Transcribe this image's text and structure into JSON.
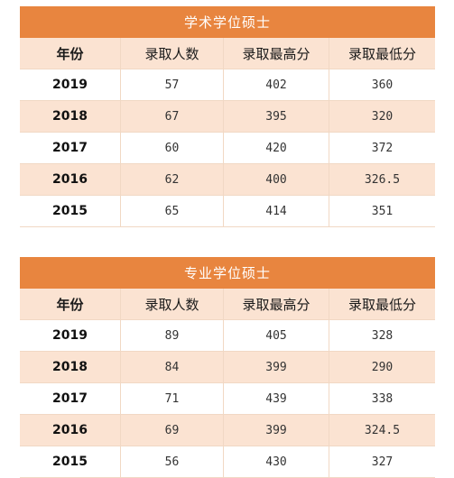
{
  "tables": [
    {
      "title": "学术学位硕士",
      "headers": [
        "年份",
        "录取人数",
        "录取最高分",
        "录取最低分"
      ],
      "rows": [
        [
          "2019",
          "57",
          "402",
          "360"
        ],
        [
          "2018",
          "67",
          "395",
          "320"
        ],
        [
          "2017",
          "60",
          "420",
          "372"
        ],
        [
          "2016",
          "62",
          "400",
          "326.5"
        ],
        [
          "2015",
          "65",
          "414",
          "351"
        ]
      ]
    },
    {
      "title": "专业学位硕士",
      "headers": [
        "年份",
        "录取人数",
        "录取最高分",
        "录取最低分"
      ],
      "rows": [
        [
          "2019",
          "89",
          "405",
          "328"
        ],
        [
          "2018",
          "84",
          "399",
          "290"
        ],
        [
          "2017",
          "71",
          "439",
          "338"
        ],
        [
          "2016",
          "69",
          "399",
          "324.5"
        ],
        [
          "2015",
          "56",
          "430",
          "327"
        ]
      ]
    }
  ],
  "colors": {
    "header_bar": "#e8853f",
    "row_tint": "#fbe3d2",
    "border": "#f1d8c4"
  }
}
